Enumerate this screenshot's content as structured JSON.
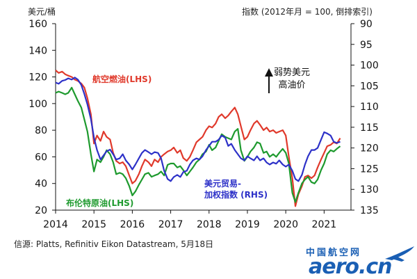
{
  "colors": {
    "jet_fuel": "#e0392b",
    "brent": "#1e9a2e",
    "dollar": "#2d31c8",
    "axis": "#111111",
    "logo": "#1a5fb4"
  },
  "header": {
    "left_unit": "美元/桶",
    "right_unit": "指数 (2012年月 = 100, 倒排索引)"
  },
  "annotation": {
    "line1": "弱势美元",
    "line2": "高油价"
  },
  "source": "信源: Platts, Refinitiv Eikon Datastream, 5月18日",
  "logo": {
    "cn": "中国航空网",
    "en": "aero.cn"
  },
  "chart_data": {
    "type": "line",
    "x_ticks": [
      "2014",
      "2015",
      "2016",
      "2017",
      "2018",
      "2019",
      "2020",
      "2021"
    ],
    "xlim": [
      2014.0,
      2021.7
    ],
    "left_axis": {
      "ylim": [
        20,
        160
      ],
      "ticks": [
        "20",
        "40",
        "60",
        "80",
        "100",
        "120",
        "140",
        "160"
      ]
    },
    "right_axis": {
      "ylim": [
        135,
        90
      ],
      "inverted": true,
      "ticks": [
        "90",
        "95",
        "100",
        "105",
        "110",
        "115",
        "120",
        "125",
        "130",
        "135"
      ]
    },
    "series": [
      {
        "name": "航空燃油(LHS)",
        "axis": "left",
        "label_lines": [
          "航空燃油(LHS)"
        ],
        "points": [
          [
            2014.0,
            125
          ],
          [
            2014.08,
            123
          ],
          [
            2014.17,
            124
          ],
          [
            2014.25,
            122
          ],
          [
            2014.33,
            121
          ],
          [
            2014.42,
            120
          ],
          [
            2014.5,
            118
          ],
          [
            2014.58,
            117
          ],
          [
            2014.67,
            115
          ],
          [
            2014.75,
            112
          ],
          [
            2014.83,
            104
          ],
          [
            2014.92,
            92
          ],
          [
            2015.0,
            70
          ],
          [
            2015.08,
            76
          ],
          [
            2015.17,
            72
          ],
          [
            2015.25,
            79
          ],
          [
            2015.33,
            75
          ],
          [
            2015.42,
            73
          ],
          [
            2015.5,
            63
          ],
          [
            2015.58,
            57
          ],
          [
            2015.67,
            55
          ],
          [
            2015.75,
            56
          ],
          [
            2015.83,
            53
          ],
          [
            2015.92,
            46
          ],
          [
            2016.0,
            40
          ],
          [
            2016.08,
            42
          ],
          [
            2016.17,
            47
          ],
          [
            2016.25,
            53
          ],
          [
            2016.33,
            58
          ],
          [
            2016.42,
            56
          ],
          [
            2016.5,
            53
          ],
          [
            2016.58,
            58
          ],
          [
            2016.67,
            56
          ],
          [
            2016.75,
            60
          ],
          [
            2016.83,
            62
          ],
          [
            2016.92,
            64
          ],
          [
            2017.0,
            65
          ],
          [
            2017.08,
            67
          ],
          [
            2017.17,
            63
          ],
          [
            2017.25,
            65
          ],
          [
            2017.33,
            59
          ],
          [
            2017.42,
            57
          ],
          [
            2017.5,
            60
          ],
          [
            2017.58,
            65
          ],
          [
            2017.67,
            71
          ],
          [
            2017.75,
            73
          ],
          [
            2017.83,
            75
          ],
          [
            2017.92,
            80
          ],
          [
            2018.0,
            83
          ],
          [
            2018.08,
            82
          ],
          [
            2018.17,
            85
          ],
          [
            2018.25,
            90
          ],
          [
            2018.33,
            92
          ],
          [
            2018.42,
            89
          ],
          [
            2018.5,
            91
          ],
          [
            2018.58,
            94
          ],
          [
            2018.67,
            97
          ],
          [
            2018.75,
            92
          ],
          [
            2018.83,
            83
          ],
          [
            2018.92,
            73
          ],
          [
            2019.0,
            75
          ],
          [
            2019.08,
            80
          ],
          [
            2019.17,
            85
          ],
          [
            2019.25,
            87
          ],
          [
            2019.33,
            84
          ],
          [
            2019.42,
            80
          ],
          [
            2019.5,
            82
          ],
          [
            2019.58,
            79
          ],
          [
            2019.67,
            80
          ],
          [
            2019.75,
            78
          ],
          [
            2019.83,
            79
          ],
          [
            2019.92,
            80
          ],
          [
            2020.0,
            76
          ],
          [
            2020.08,
            60
          ],
          [
            2020.17,
            44
          ],
          [
            2020.25,
            23
          ],
          [
            2020.33,
            32
          ],
          [
            2020.42,
            38
          ],
          [
            2020.5,
            45
          ],
          [
            2020.58,
            46
          ],
          [
            2020.67,
            44
          ],
          [
            2020.75,
            46
          ],
          [
            2020.83,
            52
          ],
          [
            2020.92,
            58
          ],
          [
            2021.0,
            63
          ],
          [
            2021.08,
            68
          ],
          [
            2021.17,
            69
          ],
          [
            2021.25,
            71
          ],
          [
            2021.33,
            70
          ],
          [
            2021.42,
            74
          ]
        ]
      },
      {
        "name": "布伦特原油(LHS)",
        "axis": "left",
        "label_lines": [
          "布伦特原油(LHS)"
        ],
        "points": [
          [
            2014.0,
            108
          ],
          [
            2014.08,
            109
          ],
          [
            2014.17,
            108
          ],
          [
            2014.25,
            107
          ],
          [
            2014.33,
            108
          ],
          [
            2014.42,
            112
          ],
          [
            2014.5,
            107
          ],
          [
            2014.58,
            102
          ],
          [
            2014.67,
            97
          ],
          [
            2014.75,
            88
          ],
          [
            2014.83,
            79
          ],
          [
            2014.92,
            62
          ],
          [
            2015.0,
            49
          ],
          [
            2015.08,
            58
          ],
          [
            2015.17,
            56
          ],
          [
            2015.25,
            60
          ],
          [
            2015.33,
            65
          ],
          [
            2015.42,
            62
          ],
          [
            2015.5,
            56
          ],
          [
            2015.58,
            47
          ],
          [
            2015.67,
            48
          ],
          [
            2015.75,
            47
          ],
          [
            2015.83,
            44
          ],
          [
            2015.92,
            38
          ],
          [
            2016.0,
            31
          ],
          [
            2016.08,
            34
          ],
          [
            2016.17,
            39
          ],
          [
            2016.25,
            43
          ],
          [
            2016.33,
            47
          ],
          [
            2016.42,
            48
          ],
          [
            2016.5,
            45
          ],
          [
            2016.58,
            46
          ],
          [
            2016.67,
            47
          ],
          [
            2016.75,
            49
          ],
          [
            2016.83,
            46
          ],
          [
            2016.92,
            54
          ],
          [
            2017.0,
            55
          ],
          [
            2017.08,
            55
          ],
          [
            2017.17,
            52
          ],
          [
            2017.25,
            53
          ],
          [
            2017.33,
            50
          ],
          [
            2017.42,
            46
          ],
          [
            2017.5,
            49
          ],
          [
            2017.58,
            52
          ],
          [
            2017.67,
            56
          ],
          [
            2017.75,
            58
          ],
          [
            2017.83,
            62
          ],
          [
            2017.92,
            64
          ],
          [
            2018.0,
            69
          ],
          [
            2018.08,
            65
          ],
          [
            2018.17,
            67
          ],
          [
            2018.25,
            72
          ],
          [
            2018.33,
            77
          ],
          [
            2018.42,
            75
          ],
          [
            2018.5,
            74
          ],
          [
            2018.58,
            73
          ],
          [
            2018.67,
            79
          ],
          [
            2018.75,
            81
          ],
          [
            2018.83,
            65
          ],
          [
            2018.92,
            57
          ],
          [
            2019.0,
            60
          ],
          [
            2019.08,
            64
          ],
          [
            2019.17,
            67
          ],
          [
            2019.25,
            71
          ],
          [
            2019.33,
            70
          ],
          [
            2019.42,
            63
          ],
          [
            2019.5,
            64
          ],
          [
            2019.58,
            60
          ],
          [
            2019.67,
            62
          ],
          [
            2019.75,
            60
          ],
          [
            2019.83,
            63
          ],
          [
            2019.92,
            66
          ],
          [
            2020.0,
            63
          ],
          [
            2020.08,
            55
          ],
          [
            2020.17,
            33
          ],
          [
            2020.25,
            26
          ],
          [
            2020.33,
            33
          ],
          [
            2020.42,
            40
          ],
          [
            2020.5,
            43
          ],
          [
            2020.58,
            45
          ],
          [
            2020.67,
            41
          ],
          [
            2020.75,
            40
          ],
          [
            2020.83,
            43
          ],
          [
            2020.92,
            50
          ],
          [
            2021.0,
            55
          ],
          [
            2021.08,
            62
          ],
          [
            2021.17,
            65
          ],
          [
            2021.25,
            64
          ],
          [
            2021.33,
            66
          ],
          [
            2021.42,
            68
          ]
        ]
      },
      {
        "name": "美元贸易-加权指数 (RHS)",
        "axis": "right",
        "label_lines": [
          "美元贸易-",
          "加权指数 (RHS)"
        ],
        "points": [
          [
            2014.0,
            104.2
          ],
          [
            2014.08,
            104.5
          ],
          [
            2014.17,
            103.8
          ],
          [
            2014.25,
            103.6
          ],
          [
            2014.33,
            103.2
          ],
          [
            2014.42,
            103.5
          ],
          [
            2014.5,
            103.0
          ],
          [
            2014.58,
            103.5
          ],
          [
            2014.67,
            104.8
          ],
          [
            2014.75,
            107.0
          ],
          [
            2014.83,
            109.5
          ],
          [
            2014.92,
            113.0
          ],
          [
            2015.0,
            117.5
          ],
          [
            2015.08,
            120.5
          ],
          [
            2015.17,
            122.8
          ],
          [
            2015.25,
            121.8
          ],
          [
            2015.33,
            120.8
          ],
          [
            2015.42,
            120.4
          ],
          [
            2015.5,
            121.5
          ],
          [
            2015.58,
            122.8
          ],
          [
            2015.67,
            122.5
          ],
          [
            2015.75,
            121.5
          ],
          [
            2015.83,
            123.0
          ],
          [
            2015.92,
            124.0
          ],
          [
            2016.0,
            125.2
          ],
          [
            2016.08,
            124.0
          ],
          [
            2016.17,
            122.5
          ],
          [
            2016.25,
            121.2
          ],
          [
            2016.33,
            120.5
          ],
          [
            2016.42,
            121.0
          ],
          [
            2016.5,
            121.5
          ],
          [
            2016.58,
            121.0
          ],
          [
            2016.67,
            121.2
          ],
          [
            2016.75,
            122.5
          ],
          [
            2016.83,
            125.5
          ],
          [
            2016.92,
            127.5
          ],
          [
            2017.0,
            128.0
          ],
          [
            2017.08,
            127.0
          ],
          [
            2017.17,
            126.5
          ],
          [
            2017.25,
            127.0
          ],
          [
            2017.33,
            125.8
          ],
          [
            2017.42,
            125.5
          ],
          [
            2017.5,
            124.0
          ],
          [
            2017.58,
            123.0
          ],
          [
            2017.67,
            122.5
          ],
          [
            2017.75,
            122.8
          ],
          [
            2017.83,
            122.0
          ],
          [
            2017.92,
            120.5
          ],
          [
            2018.0,
            119.5
          ],
          [
            2018.08,
            118.5
          ],
          [
            2018.17,
            118.5
          ],
          [
            2018.25,
            118.0
          ],
          [
            2018.33,
            117.0
          ],
          [
            2018.42,
            117.5
          ],
          [
            2018.5,
            119.5
          ],
          [
            2018.58,
            119.0
          ],
          [
            2018.67,
            120.5
          ],
          [
            2018.75,
            121.5
          ],
          [
            2018.83,
            122.5
          ],
          [
            2018.92,
            123.0
          ],
          [
            2019.0,
            122.0
          ],
          [
            2019.08,
            122.5
          ],
          [
            2019.17,
            123.0
          ],
          [
            2019.25,
            122.0
          ],
          [
            2019.33,
            123.0
          ],
          [
            2019.42,
            122.5
          ],
          [
            2019.5,
            123.5
          ],
          [
            2019.58,
            124.0
          ],
          [
            2019.67,
            123.5
          ],
          [
            2019.75,
            123.8
          ],
          [
            2019.83,
            123.0
          ],
          [
            2019.92,
            124.0
          ],
          [
            2020.0,
            124.5
          ],
          [
            2020.08,
            124.0
          ],
          [
            2020.17,
            125.5
          ],
          [
            2020.25,
            127.5
          ],
          [
            2020.33,
            128.0
          ],
          [
            2020.42,
            126.5
          ],
          [
            2020.5,
            124.0
          ],
          [
            2020.58,
            122.0
          ],
          [
            2020.67,
            120.5
          ],
          [
            2020.75,
            120.5
          ],
          [
            2020.83,
            120.0
          ],
          [
            2020.92,
            118.0
          ],
          [
            2021.0,
            116.2
          ],
          [
            2021.08,
            116.5
          ],
          [
            2021.17,
            117.0
          ],
          [
            2021.25,
            118.5
          ],
          [
            2021.33,
            118.8
          ],
          [
            2021.42,
            118.5
          ]
        ]
      }
    ]
  }
}
